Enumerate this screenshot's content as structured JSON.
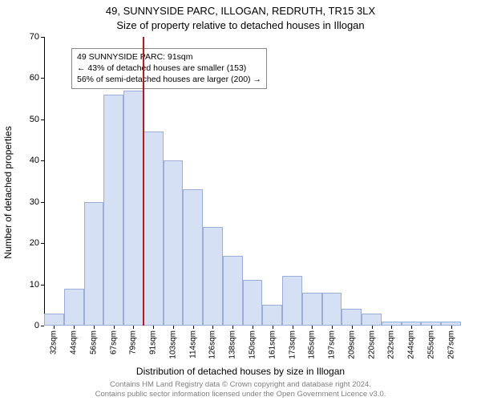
{
  "titles": {
    "line1": "49, SUNNYSIDE PARC, ILLOGAN, REDRUTH, TR15 3LX",
    "line2": "Size of property relative to detached houses in Illogan"
  },
  "ylabel": "Number of detached properties",
  "xlabel": "Distribution of detached houses by size in Illogan",
  "credits": {
    "line1": "Contains HM Land Registry data © Crown copyright and database right 2024.",
    "line2": "Contains public sector information licensed under the Open Government Licence v3.0."
  },
  "chart": {
    "type": "histogram",
    "ylim": [
      0,
      70
    ],
    "ytick_step": 10,
    "background_color": "#ffffff",
    "axis_color": "#000000",
    "bar_fill": "#d6e0f5",
    "bar_stroke": "#9aaed8",
    "marker_color": "#c41414",
    "marker_x_index": 5,
    "annotation": {
      "line1": "49 SUNNYSIDE PARC: 91sqm",
      "line2": "← 43% of detached houses are smaller (153)",
      "line3": "56% of semi-detached houses are larger (200) →"
    },
    "categories": [
      "32sqm",
      "44sqm",
      "56sqm",
      "67sqm",
      "79sqm",
      "91sqm",
      "103sqm",
      "114sqm",
      "126sqm",
      "138sqm",
      "150sqm",
      "161sqm",
      "173sqm",
      "185sqm",
      "197sqm",
      "209sqm",
      "220sqm",
      "232sqm",
      "244sqm",
      "255sqm",
      "267sqm"
    ],
    "values": [
      3,
      9,
      30,
      56,
      57,
      47,
      40,
      33,
      24,
      17,
      11,
      5,
      12,
      8,
      8,
      4,
      3,
      1,
      1,
      1,
      1
    ]
  },
  "style": {
    "title_fontsize": 13,
    "label_fontsize": 12,
    "tick_fontsize": 11,
    "credits_fontsize": 9.5
  }
}
